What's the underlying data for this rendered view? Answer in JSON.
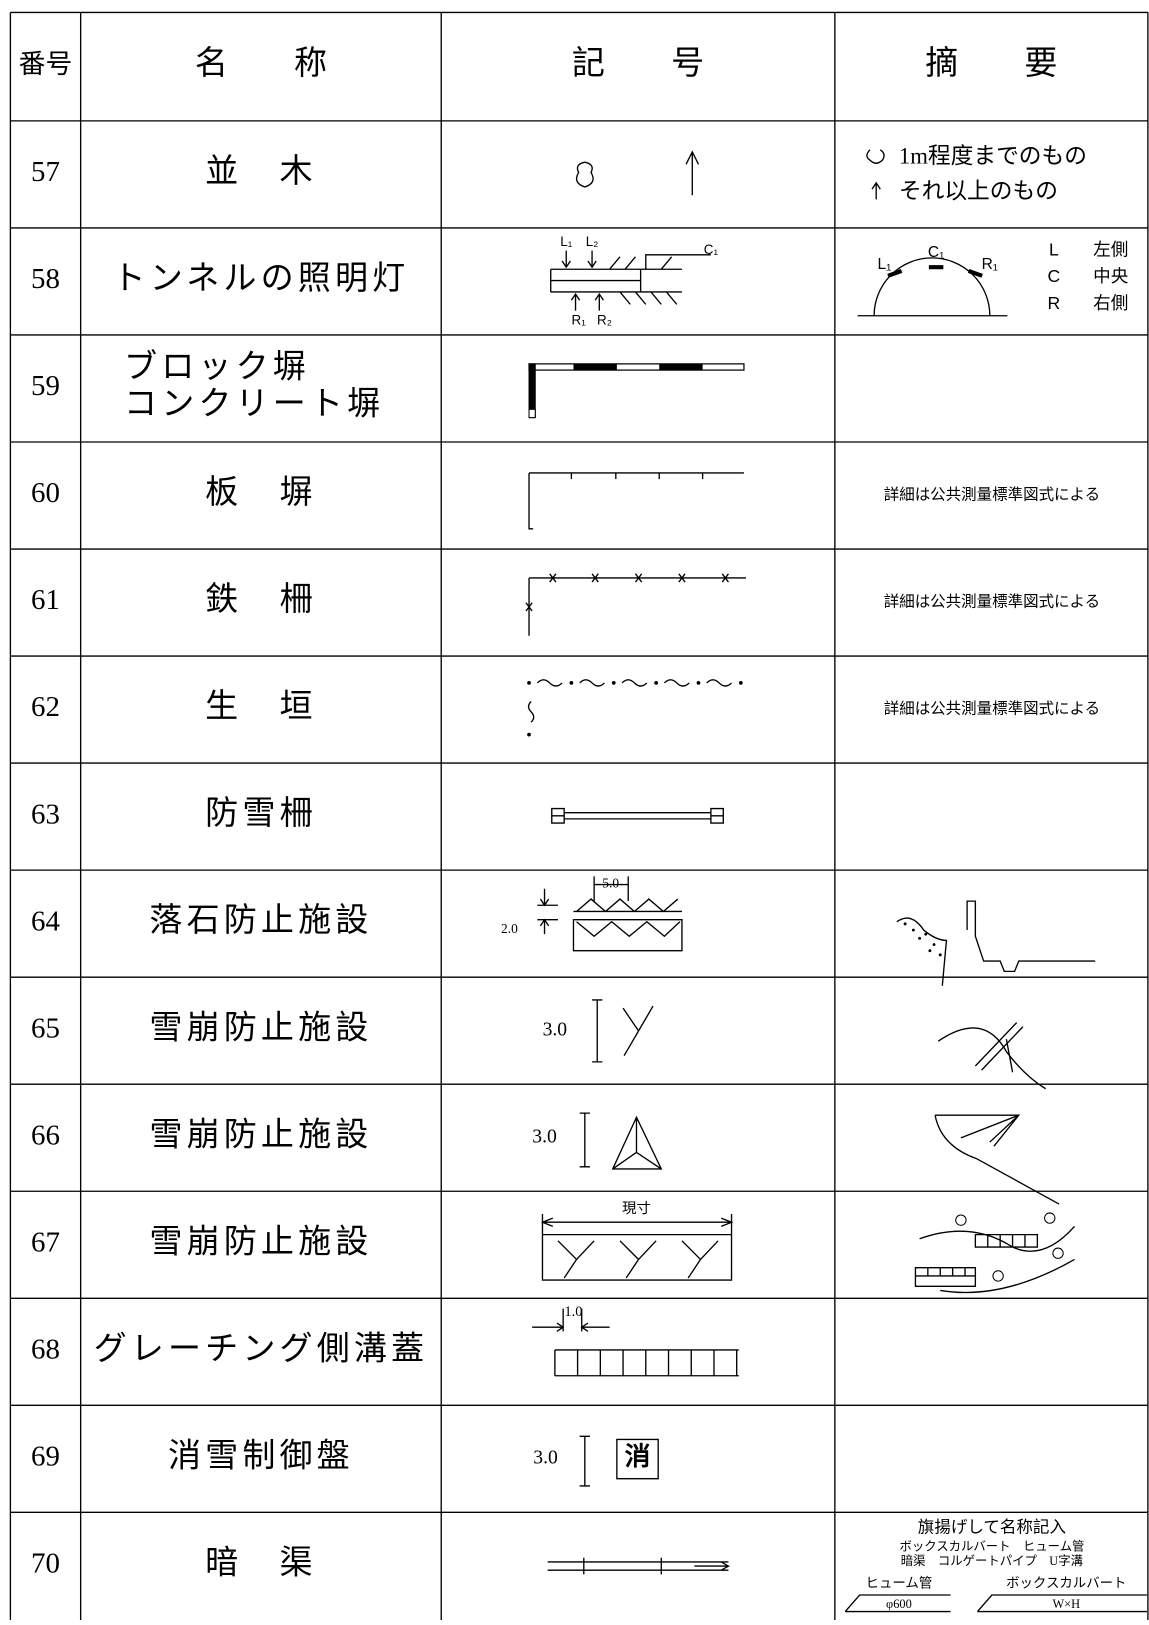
{
  "header": [
    "番号",
    "名　　称",
    "記　　号",
    "摘　　要"
  ],
  "rows": [
    {
      "number": "57",
      "name": [
        "並　木"
      ],
      "symbol_labels": [],
      "remarks": [
        "1m程度までのもの",
        "それ以上のもの"
      ]
    },
    {
      "number": "58",
      "name": [
        "トンネルの照明灯"
      ],
      "symbol_labels": [
        "L₁",
        "L₂",
        "C₁",
        "R₁",
        "R₂"
      ],
      "remarks": [
        "L₁",
        "C₁",
        "R₁",
        "L",
        "左側",
        "C",
        "中央",
        "R",
        "右側"
      ]
    },
    {
      "number": "59",
      "name": [
        "ブロック塀",
        "コンクリート塀"
      ],
      "symbol_labels": [],
      "remarks": []
    },
    {
      "number": "60",
      "name": [
        "板　塀"
      ],
      "symbol_labels": [],
      "remarks": [
        "詳細は公共測量標準図式による"
      ]
    },
    {
      "number": "61",
      "name": [
        "鉄　柵"
      ],
      "symbol_labels": [],
      "remarks": [
        "詳細は公共測量標準図式による"
      ]
    },
    {
      "number": "62",
      "name": [
        "生　垣"
      ],
      "symbol_labels": [],
      "remarks": [
        "詳細は公共測量標準図式による"
      ]
    },
    {
      "number": "63",
      "name": [
        "防雪柵"
      ],
      "symbol_labels": [],
      "remarks": []
    },
    {
      "number": "64",
      "name": [
        "落石防止施設"
      ],
      "symbol_labels": [
        "5.0",
        "2.0"
      ],
      "remarks": []
    },
    {
      "number": "65",
      "name": [
        "雪崩防止施設"
      ],
      "symbol_labels": [
        "3.0"
      ],
      "remarks": []
    },
    {
      "number": "66",
      "name": [
        "雪崩防止施設"
      ],
      "symbol_labels": [
        "3.0"
      ],
      "remarks": []
    },
    {
      "number": "67",
      "name": [
        "雪崩防止施設"
      ],
      "symbol_labels": [
        "現寸"
      ],
      "remarks": []
    },
    {
      "number": "68",
      "name": [
        "グレーチング側溝蓋"
      ],
      "symbol_labels": [
        "1.0"
      ],
      "remarks": []
    },
    {
      "number": "69",
      "name": [
        "消雪制御盤"
      ],
      "symbol_labels": [
        "3.0",
        "消"
      ],
      "remarks": []
    },
    {
      "number": "70",
      "name": [
        "暗　渠"
      ],
      "symbol_labels": [],
      "remarks": [
        "旗揚げして名称記入",
        "ボックスカルバート　ヒューム管",
        "暗渠　コルゲートパイプ　U字溝",
        "ヒューム管",
        "φ600",
        "ボックスカルバート",
        "W×H"
      ]
    }
  ]
}
